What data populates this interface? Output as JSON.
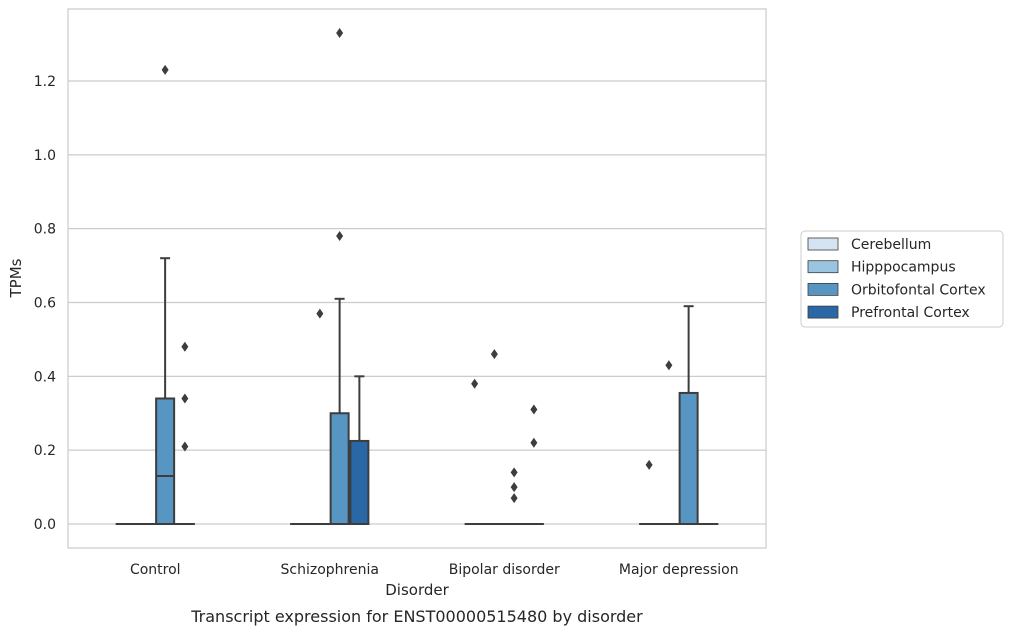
{
  "chart_data": {
    "type": "box",
    "title": "",
    "caption": "Transcript expression for ENST00000515480 by disorder",
    "xlabel": "Disorder",
    "ylabel": "TPMs",
    "ylim": [
      -0.065,
      1.395
    ],
    "yticks": [
      0.0,
      0.2,
      0.4,
      0.6,
      0.8,
      1.0,
      1.2
    ],
    "ytick_labels": [
      "0.0",
      "0.2",
      "0.4",
      "0.6",
      "0.8",
      "1.0",
      "1.2"
    ],
    "grid": "horizontal",
    "legend_position": "right",
    "categories": [
      "Control",
      "Schizophrenia",
      "Bipolar disorder",
      "Major depression"
    ],
    "series": [
      {
        "name": "Cerebellum",
        "color": "#d4e4f2",
        "boxes": [
          {
            "q1": 0,
            "median": 0,
            "q3": 0,
            "whisker_low": 0,
            "whisker_high": 0,
            "outliers": []
          },
          {
            "q1": 0,
            "median": 0,
            "q3": 0,
            "whisker_low": 0,
            "whisker_high": 0,
            "outliers": []
          },
          {
            "q1": 0,
            "median": 0,
            "q3": 0,
            "whisker_low": 0,
            "whisker_high": 0,
            "outliers": [
              0.38
            ]
          },
          {
            "q1": 0,
            "median": 0,
            "q3": 0,
            "whisker_low": 0,
            "whisker_high": 0,
            "outliers": [
              0.16
            ]
          }
        ]
      },
      {
        "name": "Hipppocampus",
        "color": "#9ac4df",
        "boxes": [
          {
            "q1": 0,
            "median": 0,
            "q3": 0,
            "whisker_low": 0,
            "whisker_high": 0,
            "outliers": []
          },
          {
            "q1": 0,
            "median": 0,
            "q3": 0,
            "whisker_low": 0,
            "whisker_high": 0,
            "outliers": [
              0.57
            ]
          },
          {
            "q1": 0,
            "median": 0,
            "q3": 0,
            "whisker_low": 0,
            "whisker_high": 0,
            "outliers": [
              0.46
            ]
          },
          {
            "q1": 0,
            "median": 0,
            "q3": 0,
            "whisker_low": 0,
            "whisker_high": 0,
            "outliers": [
              0.43
            ]
          }
        ]
      },
      {
        "name": "Orbitofontal Cortex",
        "color": "#5796c3",
        "boxes": [
          {
            "q1": 0,
            "median": 0.13,
            "q3": 0.34,
            "whisker_low": 0,
            "whisker_high": 0.72,
            "outliers": [
              1.23
            ]
          },
          {
            "q1": 0,
            "median": 0,
            "q3": 0.3,
            "whisker_low": 0,
            "whisker_high": 0.61,
            "outliers": [
              0.78,
              1.33
            ]
          },
          {
            "q1": 0,
            "median": 0,
            "q3": 0,
            "whisker_low": 0,
            "whisker_high": 0,
            "outliers": [
              0.07,
              0.1,
              0.14
            ]
          },
          {
            "q1": 0,
            "median": 0,
            "q3": 0.355,
            "whisker_low": 0,
            "whisker_high": 0.59,
            "outliers": []
          }
        ]
      },
      {
        "name": "Prefrontal Cortex",
        "color": "#2a67a5",
        "boxes": [
          {
            "q1": 0,
            "median": 0,
            "q3": 0,
            "whisker_low": 0,
            "whisker_high": 0,
            "outliers": [
              0.21,
              0.34,
              0.48
            ]
          },
          {
            "q1": 0,
            "median": 0,
            "q3": 0.225,
            "whisker_low": 0,
            "whisker_high": 0.4,
            "outliers": []
          },
          {
            "q1": 0,
            "median": 0,
            "q3": 0,
            "whisker_low": 0,
            "whisker_high": 0,
            "outliers": [
              0.22,
              0.31
            ]
          },
          {
            "q1": 0,
            "median": 0,
            "q3": 0,
            "whisker_low": 0,
            "whisker_high": 0,
            "outliers": []
          }
        ]
      }
    ]
  }
}
